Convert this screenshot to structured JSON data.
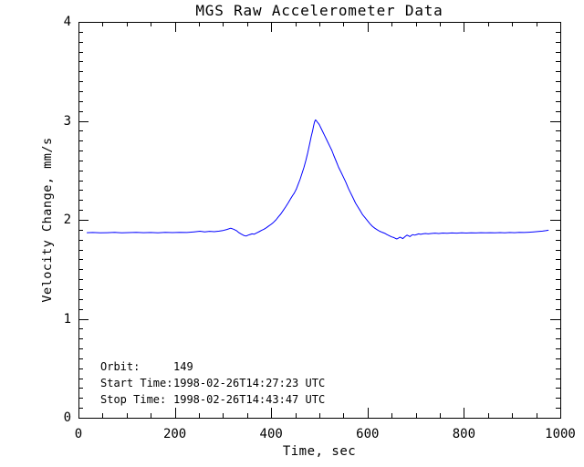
{
  "chart_data": {
    "type": "line",
    "title": "MGS Raw Accelerometer Data",
    "xlabel": "Time, sec",
    "ylabel": "Velocity Change, mm/s",
    "xlim": [
      0,
      1000
    ],
    "ylim": [
      0,
      4
    ],
    "xticks": [
      0,
      200,
      400,
      600,
      800,
      1000
    ],
    "yticks": [
      0,
      1,
      2,
      3,
      4
    ],
    "x_minor_interval": 50,
    "y_minor_interval": 0.1,
    "grid": false,
    "legend": "none",
    "line_color": "#0000ff",
    "axis_color": "#000000",
    "background_color": "#ffffff",
    "series": [
      {
        "name": "velocity-change-trace",
        "points": [
          [
            18,
            1.87
          ],
          [
            30,
            1.872
          ],
          [
            45,
            1.868
          ],
          [
            60,
            1.87
          ],
          [
            75,
            1.873
          ],
          [
            90,
            1.869
          ],
          [
            105,
            1.871
          ],
          [
            120,
            1.874
          ],
          [
            135,
            1.87
          ],
          [
            150,
            1.872
          ],
          [
            165,
            1.868
          ],
          [
            180,
            1.873
          ],
          [
            195,
            1.871
          ],
          [
            210,
            1.874
          ],
          [
            225,
            1.872
          ],
          [
            240,
            1.878
          ],
          [
            252,
            1.885
          ],
          [
            262,
            1.878
          ],
          [
            272,
            1.884
          ],
          [
            282,
            1.88
          ],
          [
            292,
            1.886
          ],
          [
            300,
            1.892
          ],
          [
            308,
            1.902
          ],
          [
            316,
            1.915
          ],
          [
            322,
            1.905
          ],
          [
            328,
            1.89
          ],
          [
            333,
            1.87
          ],
          [
            338,
            1.855
          ],
          [
            343,
            1.842
          ],
          [
            348,
            1.836
          ],
          [
            352,
            1.845
          ],
          [
            356,
            1.852
          ],
          [
            360,
            1.858
          ],
          [
            365,
            1.855
          ],
          [
            370,
            1.868
          ],
          [
            375,
            1.88
          ],
          [
            380,
            1.893
          ],
          [
            385,
            1.905
          ],
          [
            390,
            1.92
          ],
          [
            395,
            1.938
          ],
          [
            400,
            1.955
          ],
          [
            405,
            1.975
          ],
          [
            410,
            2.0
          ],
          [
            415,
            2.03
          ],
          [
            420,
            2.06
          ],
          [
            425,
            2.095
          ],
          [
            430,
            2.13
          ],
          [
            435,
            2.17
          ],
          [
            440,
            2.21
          ],
          [
            445,
            2.25
          ],
          [
            448,
            2.27
          ],
          [
            452,
            2.31
          ],
          [
            456,
            2.36
          ],
          [
            460,
            2.41
          ],
          [
            464,
            2.47
          ],
          [
            468,
            2.53
          ],
          [
            472,
            2.6
          ],
          [
            476,
            2.68
          ],
          [
            480,
            2.77
          ],
          [
            483,
            2.84
          ],
          [
            486,
            2.9
          ],
          [
            488,
            2.95
          ],
          [
            490,
            2.99
          ],
          [
            492,
            3.01
          ],
          [
            494,
            3.0
          ],
          [
            496,
            2.985
          ],
          [
            498,
            2.975
          ],
          [
            500,
            2.96
          ],
          [
            503,
            2.93
          ],
          [
            506,
            2.9
          ],
          [
            510,
            2.86
          ],
          [
            514,
            2.82
          ],
          [
            518,
            2.78
          ],
          [
            522,
            2.74
          ],
          [
            526,
            2.7
          ],
          [
            530,
            2.65
          ],
          [
            535,
            2.59
          ],
          [
            540,
            2.53
          ],
          [
            545,
            2.48
          ],
          [
            550,
            2.43
          ],
          [
            555,
            2.38
          ],
          [
            560,
            2.32
          ],
          [
            565,
            2.27
          ],
          [
            570,
            2.22
          ],
          [
            575,
            2.17
          ],
          [
            580,
            2.13
          ],
          [
            585,
            2.09
          ],
          [
            590,
            2.05
          ],
          [
            595,
            2.02
          ],
          [
            600,
            1.99
          ],
          [
            605,
            1.96
          ],
          [
            610,
            1.935
          ],
          [
            615,
            1.915
          ],
          [
            620,
            1.9
          ],
          [
            625,
            1.885
          ],
          [
            630,
            1.875
          ],
          [
            635,
            1.865
          ],
          [
            640,
            1.852
          ],
          [
            645,
            1.84
          ],
          [
            650,
            1.828
          ],
          [
            655,
            1.82
          ],
          [
            658,
            1.812
          ],
          [
            661,
            1.806
          ],
          [
            664,
            1.815
          ],
          [
            667,
            1.825
          ],
          [
            670,
            1.818
          ],
          [
            673,
            1.81
          ],
          [
            676,
            1.822
          ],
          [
            679,
            1.835
          ],
          [
            682,
            1.845
          ],
          [
            685,
            1.838
          ],
          [
            688,
            1.83
          ],
          [
            691,
            1.842
          ],
          [
            694,
            1.85
          ],
          [
            698,
            1.845
          ],
          [
            702,
            1.852
          ],
          [
            706,
            1.858
          ],
          [
            710,
            1.853
          ],
          [
            715,
            1.858
          ],
          [
            720,
            1.862
          ],
          [
            726,
            1.858
          ],
          [
            732,
            1.862
          ],
          [
            740,
            1.865
          ],
          [
            748,
            1.862
          ],
          [
            756,
            1.866
          ],
          [
            765,
            1.864
          ],
          [
            775,
            1.867
          ],
          [
            785,
            1.865
          ],
          [
            795,
            1.868
          ],
          [
            805,
            1.866
          ],
          [
            815,
            1.869
          ],
          [
            825,
            1.867
          ],
          [
            835,
            1.87
          ],
          [
            845,
            1.868
          ],
          [
            855,
            1.87
          ],
          [
            865,
            1.868
          ],
          [
            875,
            1.871
          ],
          [
            885,
            1.869
          ],
          [
            895,
            1.872
          ],
          [
            905,
            1.87
          ],
          [
            915,
            1.873
          ],
          [
            925,
            1.872
          ],
          [
            935,
            1.875
          ],
          [
            945,
            1.878
          ],
          [
            955,
            1.882
          ],
          [
            963,
            1.886
          ],
          [
            970,
            1.89
          ],
          [
            975,
            1.895
          ]
        ]
      }
    ],
    "annotations": [
      {
        "label": "Orbit:",
        "value": "149"
      },
      {
        "label": "Start Time:",
        "value": "1998-02-26T14:27:23 UTC"
      },
      {
        "label": "Stop Time:",
        "value": "1998-02-26T14:43:47 UTC"
      }
    ]
  }
}
